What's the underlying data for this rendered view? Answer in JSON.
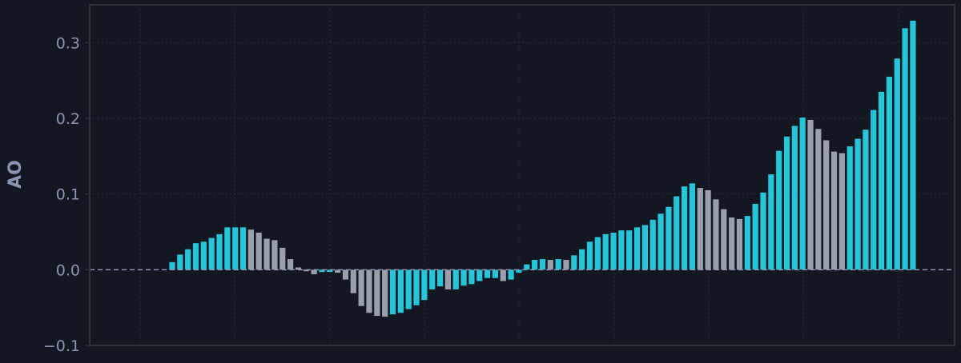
{
  "chart_data": {
    "type": "bar",
    "title": "",
    "xlabel": "",
    "ylabel": "AO",
    "ylim": [
      -0.1,
      0.35
    ],
    "yticks": [
      -0.1,
      0.0,
      0.1,
      0.2,
      0.3
    ],
    "ytick_labels": [
      "−0.1",
      "0.0",
      "0.1",
      "0.2",
      "0.3"
    ],
    "grid": true,
    "zero_line": true,
    "colors": {
      "background": "#131722",
      "increasing": "#26c6da",
      "decreasing": "#9aa0ab",
      "grid": "#2a2e39",
      "axis": "#2f3239",
      "tick_text": "#8b93b3",
      "label_text": "#8b93b3",
      "zero_line": "#8b93b3"
    },
    "series": [
      {
        "values": [
          0.01,
          0.02,
          0.027,
          0.035,
          0.037,
          0.042,
          0.047,
          0.056,
          0.056,
          0.056,
          0.053,
          0.049,
          0.041,
          0.039,
          0.029,
          0.014,
          0.003,
          -0.002,
          -0.006,
          -0.003,
          -0.003,
          -0.004,
          -0.013,
          -0.031,
          -0.048,
          -0.057,
          -0.061,
          -0.062,
          -0.059,
          -0.057,
          -0.052,
          -0.047,
          -0.04,
          -0.026,
          -0.022,
          -0.026,
          -0.026,
          -0.021,
          -0.019,
          -0.015,
          -0.011,
          -0.011,
          -0.015,
          -0.013,
          -0.004,
          0.007,
          0.013,
          0.014,
          0.013,
          0.014,
          0.013,
          0.019,
          0.027,
          0.037,
          0.043,
          0.047,
          0.049,
          0.052,
          0.052,
          0.056,
          0.059,
          0.066,
          0.074,
          0.083,
          0.097,
          0.11,
          0.114,
          0.108,
          0.105,
          0.093,
          0.08,
          0.069,
          0.067,
          0.071,
          0.087,
          0.102,
          0.126,
          0.157,
          0.176,
          0.19,
          0.201,
          0.198,
          0.186,
          0.171,
          0.156,
          0.154,
          0.163,
          0.173,
          0.185,
          0.211,
          0.235,
          0.255,
          0.279,
          0.319,
          0.329
        ]
      }
    ]
  }
}
